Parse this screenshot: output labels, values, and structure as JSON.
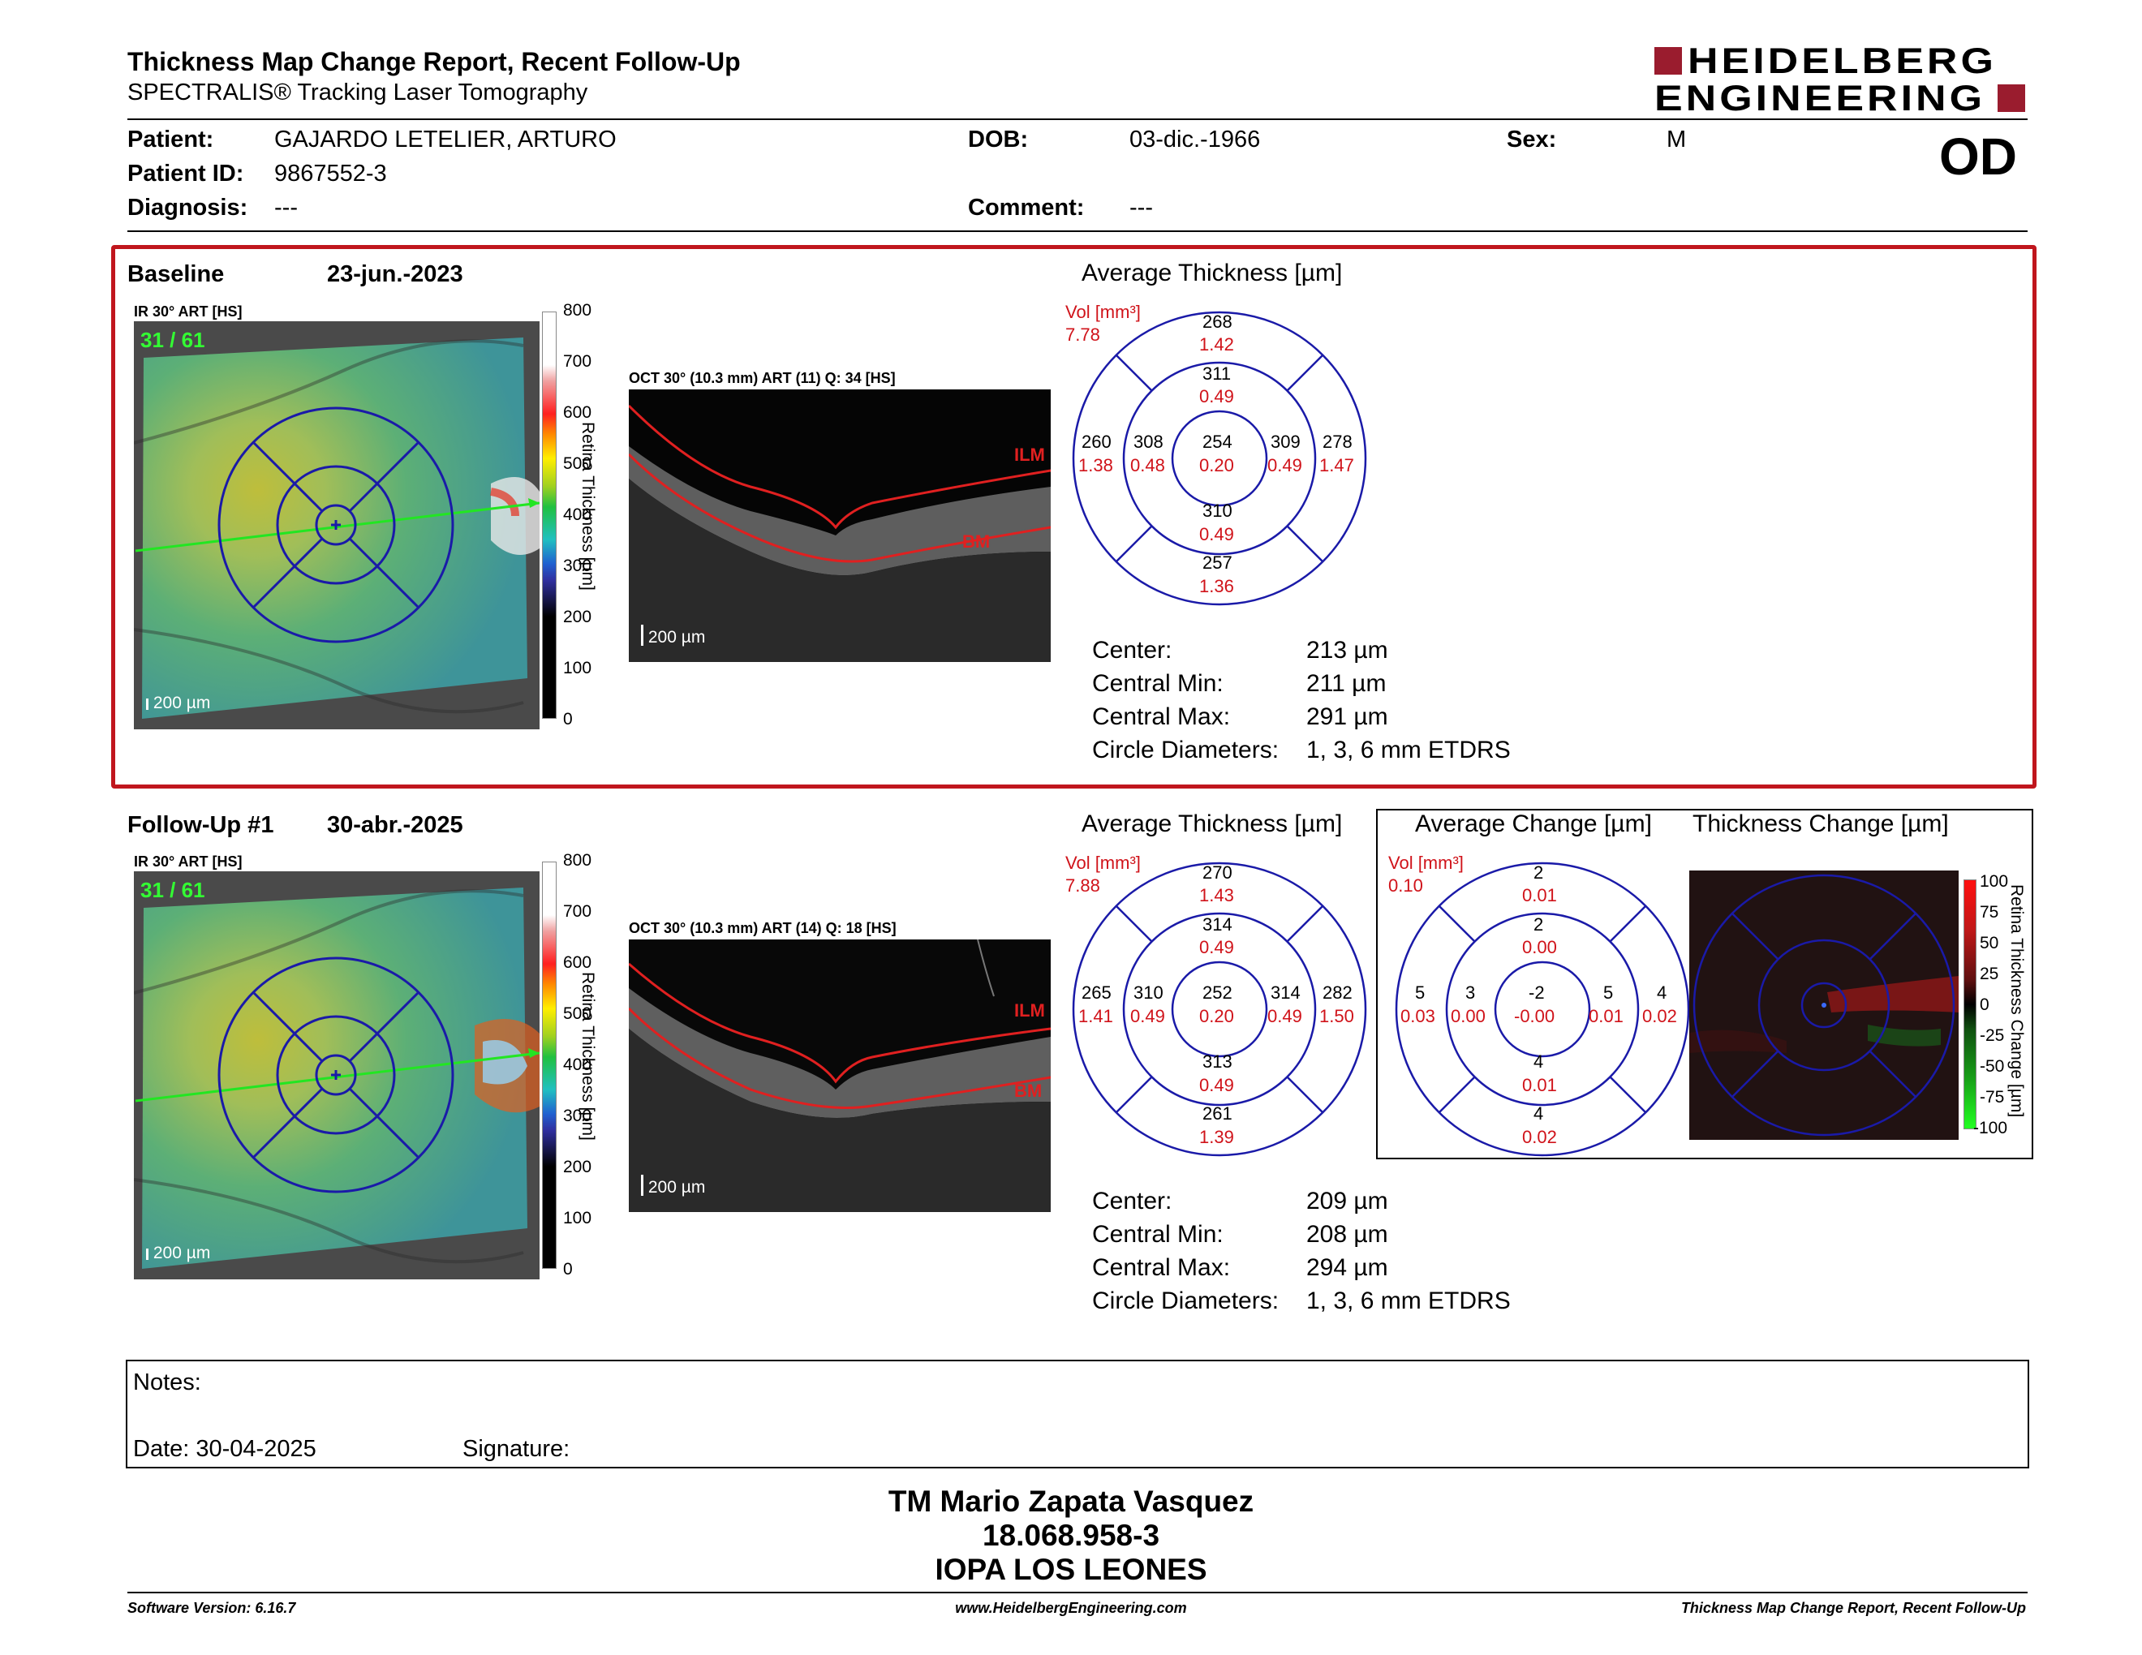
{
  "header": {
    "title": "Thickness Map Change Report, Recent Follow-Up",
    "subtitle": "SPECTRALIS® Tracking Laser Tomography",
    "logo_line1": "HEIDELBERG",
    "logo_line2": "ENGINEERING",
    "eye": "OD"
  },
  "patient": {
    "patient_label": "Patient:",
    "patient_value": "GAJARDO LETELIER, ARTURO",
    "id_label": "Patient ID:",
    "id_value": "9867552-3",
    "diagnosis_label": "Diagnosis:",
    "diagnosis_value": "---",
    "dob_label": "DOB:",
    "dob_value": "03-dic.-1966",
    "comment_label": "Comment:",
    "comment_value": "---",
    "sex_label": "Sex:",
    "sex_value": "M"
  },
  "baseline": {
    "label": "Baseline",
    "date": "23-jun.-2023",
    "ir_label": "IR 30° ART [HS]",
    "frame": "31 / 61",
    "scale_bar": "200 µm",
    "oct_label": "OCT 30° (10.3 mm) ART (11) Q: 34 [HS]",
    "oct_scale": "200 µm",
    "ilm": "ILM",
    "bm": "BM",
    "avg_title": "Average Thickness [µm]",
    "vol_label": "Vol [mm³]",
    "vol_value": "7.78",
    "grid": {
      "outer_top": [
        "268",
        "1.42"
      ],
      "inner_top": [
        "311",
        "0.49"
      ],
      "outer_left": [
        "260",
        "1.38"
      ],
      "inner_left": [
        "308",
        "0.48"
      ],
      "center": [
        "254",
        "0.20"
      ],
      "inner_right": [
        "309",
        "0.49"
      ],
      "outer_right": [
        "278",
        "1.47"
      ],
      "inner_bottom": [
        "310",
        "0.49"
      ],
      "outer_bottom": [
        "257",
        "1.36"
      ]
    },
    "stats": [
      {
        "label": "Center:",
        "value": "213 µm"
      },
      {
        "label": "Central Min:",
        "value": "211 µm"
      },
      {
        "label": "Central Max:",
        "value": "291 µm"
      },
      {
        "label": "Circle Diameters:",
        "value": "1, 3, 6 mm ETDRS"
      }
    ]
  },
  "followup": {
    "label": "Follow-Up #1",
    "date": "30-abr.-2025",
    "ir_label": "IR 30° ART [HS]",
    "frame": "31 / 61",
    "scale_bar": "200 µm",
    "oct_label": "OCT 30° (10.3 mm) ART (14) Q: 18 [HS]",
    "oct_scale": "200 µm",
    "ilm": "ILM",
    "bm": "BM",
    "avg_title": "Average Thickness [µm]",
    "vol_label": "Vol [mm³]",
    "vol_value": "7.88",
    "grid": {
      "outer_top": [
        "270",
        "1.43"
      ],
      "inner_top": [
        "314",
        "0.49"
      ],
      "outer_left": [
        "265",
        "1.41"
      ],
      "inner_left": [
        "310",
        "0.49"
      ],
      "center": [
        "252",
        "0.20"
      ],
      "inner_right": [
        "314",
        "0.49"
      ],
      "outer_right": [
        "282",
        "1.50"
      ],
      "inner_bottom": [
        "313",
        "0.49"
      ],
      "outer_bottom": [
        "261",
        "1.39"
      ]
    },
    "stats": [
      {
        "label": "Center:",
        "value": "209 µm"
      },
      {
        "label": "Central Min:",
        "value": "208 µm"
      },
      {
        "label": "Central Max:",
        "value": "294 µm"
      },
      {
        "label": "Circle Diameters:",
        "value": "1, 3, 6 mm ETDRS"
      }
    ]
  },
  "change": {
    "avg_title": "Average Change [µm]",
    "map_title": "Thickness Change [µm]",
    "vol_label": "Vol [mm³]",
    "vol_value": "0.10",
    "grid": {
      "outer_top": [
        "2",
        "0.01"
      ],
      "inner_top": [
        "2",
        "0.00"
      ],
      "outer_left": [
        "5",
        "0.03"
      ],
      "inner_left": [
        "3",
        "0.00"
      ],
      "center": [
        "-2",
        "-0.00"
      ],
      "inner_right": [
        "5",
        "0.01"
      ],
      "outer_right": [
        "4",
        "0.02"
      ],
      "inner_bottom": [
        "4",
        "0.01"
      ],
      "outer_bottom": [
        "4",
        "0.02"
      ]
    },
    "scale_title": "Retina Thickness Change [µm]",
    "scale_ticks": [
      "100",
      "75",
      "50",
      "25",
      "0",
      "-25",
      "-50",
      "-75",
      "-100"
    ]
  },
  "thickness_scale": {
    "title": "Retina Thickness [µm]",
    "ticks": [
      "800",
      "700",
      "600",
      "500",
      "400",
      "300",
      "200",
      "100",
      "0"
    ]
  },
  "notes": {
    "notes_label": "Notes:",
    "date_label": "Date: 30-04-2025",
    "signature_label": "Signature:"
  },
  "footer": {
    "name": "TM Mario Zapata Vasquez",
    "rut": "18.068.958-3",
    "institution": "IOPA LOS LEONES",
    "software": "Software Version: 6.16.7",
    "website": "www.HeidelbergEngineering.com",
    "report_name": "Thickness Map Change Report, Recent Follow-Up"
  },
  "colors": {
    "brand": "#9a1c2e",
    "frame_red": "#c0161d",
    "grid_blue": "#1a1aa8",
    "volume_red": "#d0131a"
  }
}
